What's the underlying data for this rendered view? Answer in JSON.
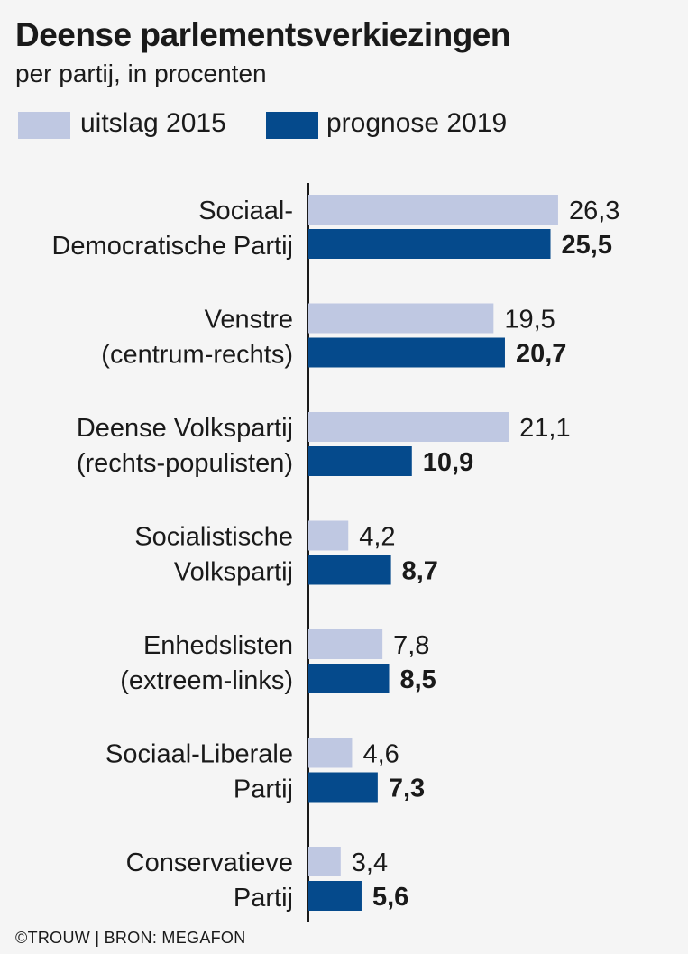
{
  "chart_data": {
    "type": "bar",
    "orientation": "horizontal",
    "title": "Deense parlementsverkiezingen",
    "subtitle": "per partij, in procenten",
    "categories": [
      [
        "Sociaal-",
        "Democratische Partij"
      ],
      [
        "Venstre",
        "(centrum-rechts)"
      ],
      [
        "Deense Volkspartij",
        "(rechts-populisten)"
      ],
      [
        "Socialistische",
        "Volkspartij"
      ],
      [
        "Enhedslisten",
        "(extreem-links)"
      ],
      [
        "Sociaal-Liberale",
        "Partij"
      ],
      [
        "Conservatieve",
        "Partij"
      ]
    ],
    "series": [
      {
        "name": "uitslag 2015",
        "color": "#bfc8e2",
        "bold_labels": false,
        "values": [
          26.3,
          19.5,
          21.1,
          4.2,
          7.8,
          4.6,
          3.4
        ],
        "labels": [
          "26,3",
          "19,5",
          "21,1",
          "4,2",
          "7,8",
          "4,6",
          "3,4"
        ]
      },
      {
        "name": "prognose 2019",
        "color": "#054a8c",
        "bold_labels": true,
        "values": [
          25.5,
          20.7,
          10.9,
          8.7,
          8.5,
          7.3,
          5.6
        ],
        "labels": [
          "25,5",
          "20,7",
          "10,9",
          "8,7",
          "8,5",
          "7,3",
          "5,6"
        ]
      }
    ],
    "xlim": [
      0,
      30
    ],
    "grid": false,
    "legend": "top-left"
  },
  "footer": "©TROUW | BRON: MEGAFON"
}
